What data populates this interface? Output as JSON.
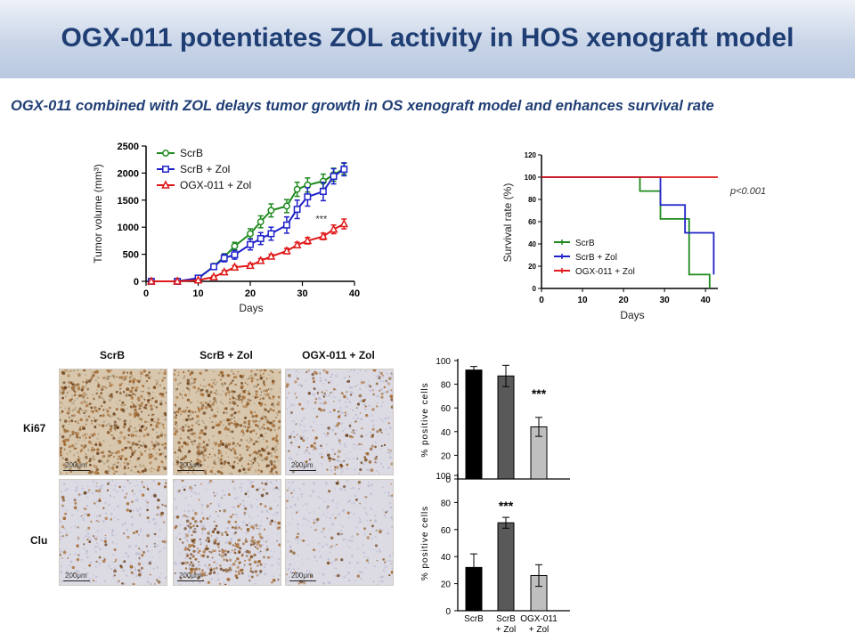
{
  "title": "OGX-011 potentiates ZOL activity in HOS xenograft model",
  "subtitle": "OGX-011 combined with ZOL delays tumor growth in OS xenograft model and enhances survival rate",
  "colors": {
    "title": "#1f3e74",
    "scrb": "#1e8a1e",
    "scrb_zol": "#1f22c8",
    "ogx_zol": "#e01818"
  },
  "chart_data": [
    {
      "type": "line",
      "ylabel": "Tumor volume (mm³)",
      "xlabel": "Days",
      "xlim": [
        0,
        40
      ],
      "ylim": [
        0,
        2500
      ],
      "xticks": [
        0,
        10,
        20,
        30,
        40
      ],
      "yticks": [
        0,
        500,
        1000,
        1500,
        2000,
        2500
      ],
      "legend_position": "top-left",
      "annotation": "***",
      "series": [
        {
          "name": "ScrB",
          "color": "#1e8a1e",
          "marker": "circle",
          "x": [
            1,
            6,
            10,
            13,
            15,
            17,
            20,
            22,
            24,
            27,
            29,
            31,
            34,
            36,
            38
          ],
          "y": [
            0,
            0,
            50,
            280,
            450,
            650,
            880,
            1100,
            1310,
            1390,
            1700,
            1780,
            1850,
            1970,
            2080
          ],
          "err": [
            0,
            0,
            20,
            40,
            60,
            70,
            90,
            110,
            120,
            120,
            130,
            130,
            130,
            120,
            100
          ]
        },
        {
          "name": "ScrB + Zol",
          "color": "#1f22c8",
          "marker": "square",
          "x": [
            1,
            6,
            10,
            13,
            15,
            17,
            20,
            22,
            24,
            27,
            29,
            31,
            34,
            36,
            38
          ],
          "y": [
            0,
            0,
            60,
            270,
            430,
            490,
            680,
            790,
            880,
            1040,
            1330,
            1560,
            1660,
            1940,
            2070
          ],
          "err": [
            0,
            0,
            20,
            50,
            70,
            80,
            100,
            110,
            120,
            150,
            170,
            170,
            170,
            140,
            120
          ]
        },
        {
          "name": "OGX-011 + Zol",
          "color": "#e01818",
          "marker": "triangle",
          "x": [
            1,
            6,
            10,
            13,
            15,
            17,
            20,
            22,
            24,
            27,
            29,
            31,
            34,
            36,
            38
          ],
          "y": [
            0,
            0,
            20,
            80,
            170,
            260,
            290,
            380,
            460,
            560,
            670,
            750,
            830,
            960,
            1060
          ],
          "err": [
            0,
            0,
            10,
            20,
            30,
            30,
            40,
            40,
            40,
            50,
            50,
            60,
            60,
            80,
            90
          ]
        }
      ]
    },
    {
      "type": "line",
      "ylabel": "Survival rate (%)",
      "xlabel": "Days",
      "xlim": [
        0,
        43
      ],
      "ylim": [
        0,
        120
      ],
      "xticks": [
        0,
        10,
        20,
        30,
        40
      ],
      "yticks": [
        0,
        20,
        40,
        60,
        80,
        100,
        120
      ],
      "legend_position": "bottom-left",
      "annotation": "p<0.001",
      "series": [
        {
          "name": "ScrB",
          "color": "#1e8a1e",
          "x": [
            0,
            24,
            29,
            36,
            41
          ],
          "y": [
            100,
            87.5,
            62.5,
            12.5,
            0
          ]
        },
        {
          "name": "ScrB + Zol",
          "color": "#1f22c8",
          "x": [
            0,
            24,
            29,
            35,
            42
          ],
          "y": [
            100,
            100,
            75,
            50,
            12.5
          ]
        },
        {
          "name": "OGX-011 + Zol",
          "color": "#e01818",
          "x": [
            0,
            43
          ],
          "y": [
            100,
            100
          ]
        }
      ]
    },
    {
      "type": "bar",
      "ylabel": "% positive cells",
      "ylim": [
        0,
        100
      ],
      "yticks": [
        0,
        20,
        40,
        60,
        80,
        100
      ],
      "categories": [
        "ScrB",
        "ScrB + Zol",
        "OGX-011 + Zol"
      ],
      "values": [
        92,
        87,
        44
      ],
      "errors": [
        3,
        9,
        8
      ],
      "colors": [
        "#000000",
        "#595959",
        "#bfbfbf"
      ],
      "annotation": "***"
    },
    {
      "type": "bar",
      "ylabel": "% positive cells",
      "ylim": [
        0,
        100
      ],
      "yticks": [
        0,
        20,
        40,
        60,
        80,
        100
      ],
      "categories": [
        "ScrB",
        "ScrB + Zol",
        "OGX-011 + Zol"
      ],
      "category_labels": [
        "ScrB",
        "ScrB\n+ Zol",
        "OGX-011\n+ Zol"
      ],
      "values": [
        32,
        65,
        26
      ],
      "errors": [
        10,
        4,
        8
      ],
      "colors": [
        "#000000",
        "#595959",
        "#bfbfbf"
      ],
      "annotation": "***"
    }
  ],
  "ihc": {
    "columns": [
      "ScrB",
      "ScrB + Zol",
      "OGX-011 + Zol"
    ],
    "rows": [
      "Ki67",
      "Clu"
    ],
    "scale_label": "200μm"
  }
}
